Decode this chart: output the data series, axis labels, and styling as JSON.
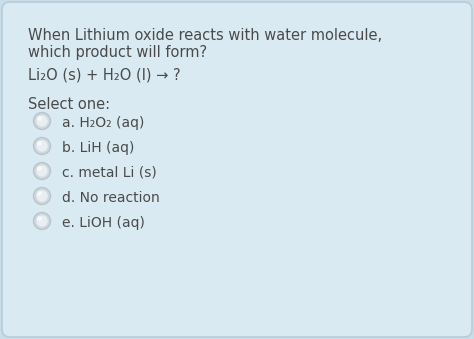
{
  "bg_outer": "#c8dde8",
  "bg_card": "#daeaf3",
  "text_color": "#4a4a4a",
  "question_line1": "When Lithium oxide reacts with water molecule,",
  "question_line2": "which product will form?",
  "equation": "Li₂O (s) + H₂O (l) → ?",
  "select_label": "Select one:",
  "options": [
    "a. H₂O₂ (aq)",
    "b. LiH (aq)",
    "c. metal Li (s)",
    "d. No reaction",
    "e. LiOH (aq)"
  ],
  "font_size_question": 10.5,
  "font_size_equation": 10.5,
  "font_size_options": 10.0,
  "font_size_select": 10.5,
  "radio_outer_color": "#d0d8de",
  "radio_inner_color": "#e8eef2",
  "radio_edge_color": "#b8c4cc",
  "card_edge_color": "#b8cdd8"
}
